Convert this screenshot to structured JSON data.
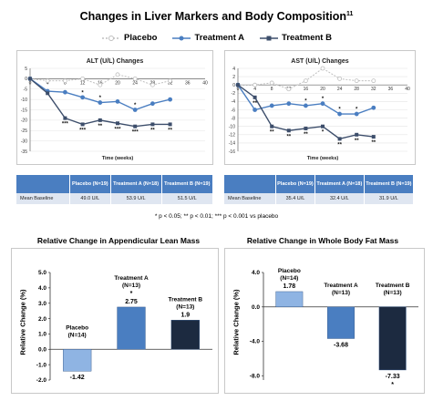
{
  "page": {
    "title": "Changes in Liver Markers and Body Composition",
    "title_sup": "11",
    "footnote": "* p < 0.05; ** p < 0.01; *** p < 0.001 vs placebo"
  },
  "legend": [
    {
      "name": "Placebo",
      "color": "#bfbfbf",
      "marker": "circle",
      "dash": true
    },
    {
      "name": "Treatment A",
      "color": "#4a7ec1",
      "marker": "circle",
      "dash": false
    },
    {
      "name": "Treatment B",
      "color": "#3d4e6b",
      "marker": "square",
      "dash": false
    }
  ],
  "tables": {
    "alt": {
      "headers": [
        "",
        "Placebo (N=19)",
        "Treatment A (N=18)",
        "Treatment B (N=19)"
      ],
      "row": [
        "Mean Baseline",
        "49.0 U/L",
        "53.9 U/L",
        "51.5 U/L"
      ]
    },
    "ast": {
      "headers": [
        "",
        "Placebo (N=19)",
        "Treatment A (N=18)",
        "Treatment B (N=19)"
      ],
      "row": [
        "Mean Baseline",
        "35.4 U/L",
        "32.4 U/L",
        "31.9 U/L"
      ]
    }
  },
  "chart_data": [
    {
      "type": "line",
      "title": "ALT (U/L) Changes",
      "xlabel": "Time (weeks)",
      "ylabel": "",
      "x_ticks": [
        0,
        4,
        8,
        12,
        16,
        20,
        24,
        28,
        32,
        36,
        40
      ],
      "y_ticks": [
        5,
        0,
        -5,
        -10,
        -15,
        -20,
        -25,
        -30,
        -35
      ],
      "xlim": [
        0,
        40
      ],
      "ylim": [
        -35,
        5
      ],
      "grid": true,
      "series": [
        {
          "name": "Placebo",
          "x": [
            0,
            4,
            8,
            12,
            16,
            20,
            24,
            28,
            32
          ],
          "y": [
            0,
            -1,
            -1,
            0,
            -3,
            2,
            0,
            -3,
            -1
          ],
          "stars": [
            "",
            "",
            "",
            "",
            "",
            "",
            "",
            "",
            ""
          ]
        },
        {
          "name": "Treatment A",
          "x": [
            0,
            4,
            8,
            12,
            16,
            20,
            24,
            28,
            32
          ],
          "y": [
            0,
            -6,
            -6.5,
            -9,
            -11.5,
            -11,
            -15,
            -12,
            -10
          ],
          "stars": [
            "",
            "",
            "",
            "*",
            "*",
            "",
            "*",
            "",
            ""
          ]
        },
        {
          "name": "Treatment B",
          "x": [
            0,
            4,
            8,
            12,
            16,
            20,
            24,
            28,
            32
          ],
          "y": [
            0,
            -7,
            -19,
            -22,
            -20,
            -21.5,
            -23,
            -22,
            -22
          ],
          "stars": [
            "",
            "",
            "***",
            "***",
            "**",
            "***",
            "***",
            "**",
            "**"
          ]
        }
      ]
    },
    {
      "type": "line",
      "title": "AST (U/L) Changes",
      "xlabel": "Time (weeks)",
      "ylabel": "",
      "x_ticks": [
        0,
        4,
        8,
        12,
        16,
        20,
        24,
        28,
        32,
        36,
        40
      ],
      "y_ticks": [
        4,
        2,
        0,
        -2,
        -4,
        -6,
        -8,
        -10,
        -12,
        -14,
        -16
      ],
      "xlim": [
        0,
        40
      ],
      "ylim": [
        -16,
        4
      ],
      "grid": true,
      "series": [
        {
          "name": "Placebo",
          "x": [
            0,
            4,
            8,
            12,
            16,
            20,
            24,
            28,
            32
          ],
          "y": [
            0,
            0,
            0.5,
            -1,
            1,
            4,
            1.5,
            1,
            1
          ],
          "stars": [
            "",
            "",
            "",
            "",
            "",
            "",
            "",
            "",
            ""
          ]
        },
        {
          "name": "Treatment A",
          "x": [
            0,
            4,
            8,
            12,
            16,
            20,
            24,
            28,
            32
          ],
          "y": [
            0,
            -6,
            -5,
            -4.5,
            -5,
            -4.5,
            -7,
            -7,
            -5.5
          ],
          "stars": [
            "",
            "",
            "",
            "",
            "*",
            "*",
            "*",
            "*",
            ""
          ]
        },
        {
          "name": "Treatment B",
          "x": [
            0,
            4,
            8,
            12,
            16,
            20,
            24,
            28,
            32
          ],
          "y": [
            0,
            -3,
            -10,
            -11,
            -10.5,
            -10,
            -13,
            -12,
            -12.5
          ],
          "stars": [
            "",
            "**",
            "**",
            "**",
            "**",
            "*",
            "**",
            "**",
            "**"
          ]
        }
      ]
    },
    {
      "type": "bar",
      "title": "Relative Change in Appendicular Lean Mass",
      "ylabel": "Relative Change (%)",
      "categories": [
        "Placebo (N=14)",
        "Treatment A (N=13)",
        "Treatment B (N=13)"
      ],
      "values": [
        -1.42,
        2.75,
        1.9
      ],
      "value_labels": [
        "-1.42",
        "2.75",
        "1.9"
      ],
      "stars": [
        "",
        "*",
        ""
      ],
      "y_ticks": [
        "5.0",
        "4.0",
        "3.0",
        "2.0",
        "1.0",
        "0.0",
        "-1.0",
        "-2.0"
      ],
      "ylim": [
        -2,
        5
      ],
      "colors": [
        "#8fb4e3",
        "#4a7ec1",
        "#1c2a40"
      ]
    },
    {
      "type": "bar",
      "title": "Relative Change in Whole Body Fat Mass",
      "ylabel": "Relative Change (%)",
      "categories": [
        "Placebo (N=14)",
        "Treatment A (N=13)",
        "Treatment B (N=13)"
      ],
      "values": [
        1.78,
        -3.68,
        -7.33
      ],
      "value_labels": [
        "1.78",
        "-3.68",
        "-7.33"
      ],
      "stars": [
        "",
        "",
        "*"
      ],
      "y_ticks": [
        "4.0",
        "0.0",
        "-4.0",
        "-8.0"
      ],
      "ylim": [
        -8.5,
        4
      ],
      "colors": [
        "#8fb4e3",
        "#4a7ec1",
        "#1c2a40"
      ]
    }
  ]
}
